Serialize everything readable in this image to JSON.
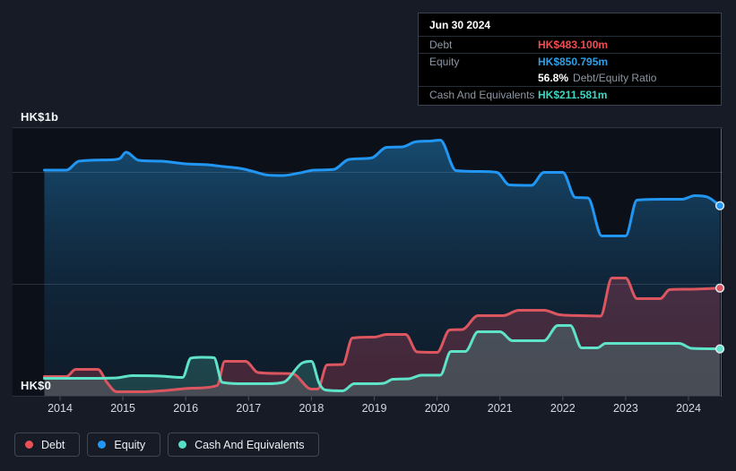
{
  "chart": {
    "y_axis": {
      "top_label": "HK$1b",
      "bottom_label": "HK$0"
    },
    "x_axis": {
      "years": [
        "2014",
        "2015",
        "2016",
        "2017",
        "2018",
        "2019",
        "2020",
        "2021",
        "2022",
        "2023",
        "2024"
      ]
    }
  },
  "tooltip": {
    "title": "Jun 30 2024",
    "debt": {
      "label": "Debt",
      "value": "HK$483.100m"
    },
    "equity": {
      "label": "Equity",
      "value": "HK$850.795m"
    },
    "ratio": {
      "value": "56.8%",
      "label": "Debt/Equity Ratio"
    },
    "cash": {
      "label": "Cash And Equivalents",
      "value": "HK$211.581m"
    }
  },
  "legend": {
    "items": [
      {
        "key": "debt",
        "label": "Debt",
        "color": "#ea5157"
      },
      {
        "key": "equity",
        "label": "Equity",
        "color": "#2196f3"
      },
      {
        "key": "cash",
        "label": "Cash And Equivalents",
        "color": "#54e0c5"
      }
    ]
  },
  "colors": {
    "background": "#161b25",
    "plot_background": "#0c1119",
    "grid_border": "#2b3342",
    "grid_minor": "rgba(200,212,228,0.16)",
    "debt_line": "#dc5660",
    "equity_line": "#2196f3",
    "cash_line": "#5fe3c8",
    "debt_value_text": "#ef4e52",
    "equity_value_text": "#2e9fe6",
    "cash_value_text": "#3ed5c1"
  },
  "chart_data": {
    "type": "area",
    "title": "Debt to Equity history",
    "unit": "HK$ millions",
    "currency": "HK$",
    "last_point_date": "Jun 30 2024",
    "x_domain": [
      2013.7,
      2024.55
    ],
    "y_domain_millions": [
      0,
      1200
    ],
    "x_ticks": [
      2014,
      2015,
      2016,
      2017,
      2018,
      2019,
      2020,
      2021,
      2022,
      2023,
      2024
    ],
    "y_gridlines_millions": [
      1200,
      1000,
      500,
      0
    ],
    "legend_position": "bottom-left",
    "series": [
      {
        "name": "Equity",
        "color": "#2196f3",
        "current_value_label": "HK$850.795m",
        "points": [
          [
            2013.75,
            1010
          ],
          [
            2014.1,
            1010
          ],
          [
            2014.3,
            1050
          ],
          [
            2014.8,
            1056
          ],
          [
            2014.95,
            1062
          ],
          [
            2015.05,
            1090
          ],
          [
            2015.25,
            1054
          ],
          [
            2015.6,
            1050
          ],
          [
            2016.0,
            1038
          ],
          [
            2016.35,
            1034
          ],
          [
            2016.6,
            1026
          ],
          [
            2016.9,
            1016
          ],
          [
            2017.1,
            1002
          ],
          [
            2017.3,
            988
          ],
          [
            2017.55,
            986
          ],
          [
            2017.8,
            997
          ],
          [
            2018.05,
            1010
          ],
          [
            2018.35,
            1013
          ],
          [
            2018.6,
            1058
          ],
          [
            2018.95,
            1064
          ],
          [
            2019.2,
            1112
          ],
          [
            2019.45,
            1114
          ],
          [
            2019.65,
            1136
          ],
          [
            2019.9,
            1140
          ],
          [
            2020.05,
            1144
          ],
          [
            2020.3,
            1008
          ],
          [
            2020.7,
            1004
          ],
          [
            2020.95,
            1000
          ],
          [
            2021.15,
            944
          ],
          [
            2021.5,
            942
          ],
          [
            2021.7,
            1000
          ],
          [
            2022.0,
            1000
          ],
          [
            2022.2,
            888
          ],
          [
            2022.4,
            886
          ],
          [
            2022.62,
            716
          ],
          [
            2023.0,
            716
          ],
          [
            2023.18,
            876
          ],
          [
            2023.6,
            880
          ],
          [
            2023.9,
            880
          ],
          [
            2024.1,
            896
          ],
          [
            2024.3,
            890
          ],
          [
            2024.5,
            851
          ]
        ]
      },
      {
        "name": "Debt",
        "color": "#dc5660",
        "current_value_label": "HK$483.100m",
        "points": [
          [
            2013.75,
            88
          ],
          [
            2014.1,
            88
          ],
          [
            2014.25,
            120
          ],
          [
            2014.6,
            120
          ],
          [
            2014.75,
            60
          ],
          [
            2014.9,
            20
          ],
          [
            2015.3,
            20
          ],
          [
            2015.7,
            26
          ],
          [
            2016.1,
            36
          ],
          [
            2016.5,
            48
          ],
          [
            2016.62,
            156
          ],
          [
            2016.95,
            156
          ],
          [
            2017.15,
            106
          ],
          [
            2017.45,
            102
          ],
          [
            2017.7,
            100
          ],
          [
            2018.0,
            32
          ],
          [
            2018.1,
            32
          ],
          [
            2018.25,
            140
          ],
          [
            2018.5,
            142
          ],
          [
            2018.65,
            260
          ],
          [
            2019.0,
            264
          ],
          [
            2019.2,
            276
          ],
          [
            2019.5,
            276
          ],
          [
            2019.68,
            198
          ],
          [
            2020.0,
            196
          ],
          [
            2020.2,
            296
          ],
          [
            2020.4,
            298
          ],
          [
            2020.65,
            360
          ],
          [
            2021.05,
            360
          ],
          [
            2021.3,
            384
          ],
          [
            2021.7,
            384
          ],
          [
            2021.95,
            364
          ],
          [
            2022.3,
            360
          ],
          [
            2022.6,
            358
          ],
          [
            2022.78,
            528
          ],
          [
            2023.0,
            528
          ],
          [
            2023.18,
            436
          ],
          [
            2023.55,
            436
          ],
          [
            2023.7,
            476
          ],
          [
            2024.0,
            478
          ],
          [
            2024.5,
            483.1
          ]
        ]
      },
      {
        "name": "Cash And Equivalents",
        "color": "#5fe3c8",
        "current_value_label": "HK$211.581m",
        "points": [
          [
            2013.75,
            80
          ],
          [
            2014.5,
            80
          ],
          [
            2014.9,
            82
          ],
          [
            2015.15,
            92
          ],
          [
            2015.6,
            90
          ],
          [
            2015.95,
            84
          ],
          [
            2016.08,
            170
          ],
          [
            2016.25,
            174
          ],
          [
            2016.45,
            172
          ],
          [
            2016.58,
            62
          ],
          [
            2016.9,
            56
          ],
          [
            2017.3,
            56
          ],
          [
            2017.55,
            62
          ],
          [
            2017.85,
            148
          ],
          [
            2018.0,
            156
          ],
          [
            2018.12,
            60
          ],
          [
            2018.22,
            28
          ],
          [
            2018.5,
            24
          ],
          [
            2018.68,
            56
          ],
          [
            2019.0,
            56
          ],
          [
            2019.15,
            58
          ],
          [
            2019.3,
            76
          ],
          [
            2019.55,
            78
          ],
          [
            2019.75,
            94
          ],
          [
            2020.05,
            94
          ],
          [
            2020.22,
            200
          ],
          [
            2020.45,
            200
          ],
          [
            2020.65,
            288
          ],
          [
            2021.0,
            288
          ],
          [
            2021.2,
            248
          ],
          [
            2021.7,
            248
          ],
          [
            2021.92,
            316
          ],
          [
            2022.12,
            316
          ],
          [
            2022.3,
            216
          ],
          [
            2022.55,
            216
          ],
          [
            2022.68,
            236
          ],
          [
            2023.5,
            236
          ],
          [
            2023.85,
            236
          ],
          [
            2024.05,
            214
          ],
          [
            2024.5,
            211.581
          ]
        ]
      }
    ]
  }
}
